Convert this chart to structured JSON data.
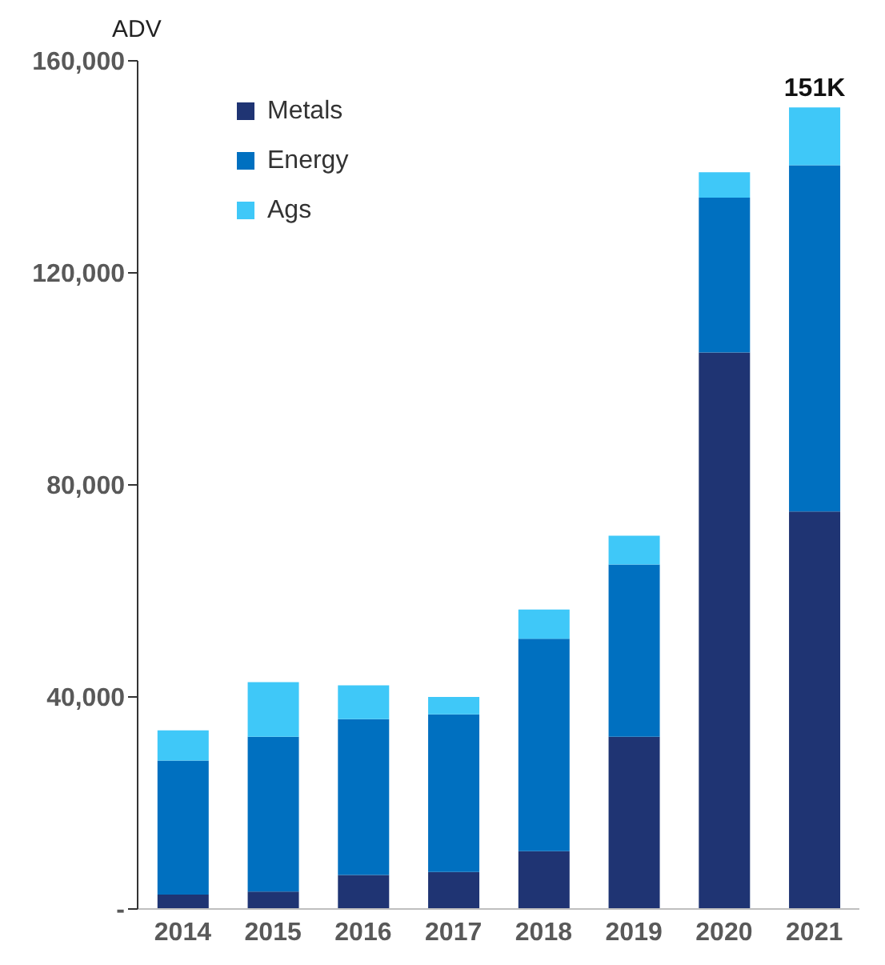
{
  "chart_data": {
    "type": "bar",
    "ylabel": "ADV",
    "categories": [
      "2014",
      "2015",
      "2016",
      "2017",
      "2018",
      "2019",
      "2020",
      "2021"
    ],
    "series": [
      {
        "name": "Metals",
        "color": "#1f3473",
        "values": [
          2700,
          3300,
          6400,
          7000,
          10900,
          32500,
          105000,
          75000
        ]
      },
      {
        "name": "Energy",
        "color": "#0070c0",
        "values": [
          25300,
          29200,
          29400,
          29700,
          40100,
          32500,
          29200,
          65300
        ]
      },
      {
        "name": "Ags",
        "color": "#3fc8f8",
        "values": [
          5700,
          10300,
          6400,
          3300,
          5500,
          5400,
          4800,
          10900
        ]
      }
    ],
    "stacked": true,
    "ylim": [
      0,
      160000
    ],
    "yticks": [
      {
        "value": 0,
        "label": "-"
      },
      {
        "value": 40000,
        "label": "40,000"
      },
      {
        "value": 80000,
        "label": "80,000"
      },
      {
        "value": 120000,
        "label": "120,000"
      },
      {
        "value": 160000,
        "label": "160,000"
      }
    ],
    "totals": [
      null,
      null,
      null,
      null,
      null,
      null,
      null,
      "151K"
    ],
    "grid": false,
    "legend": "top left"
  }
}
